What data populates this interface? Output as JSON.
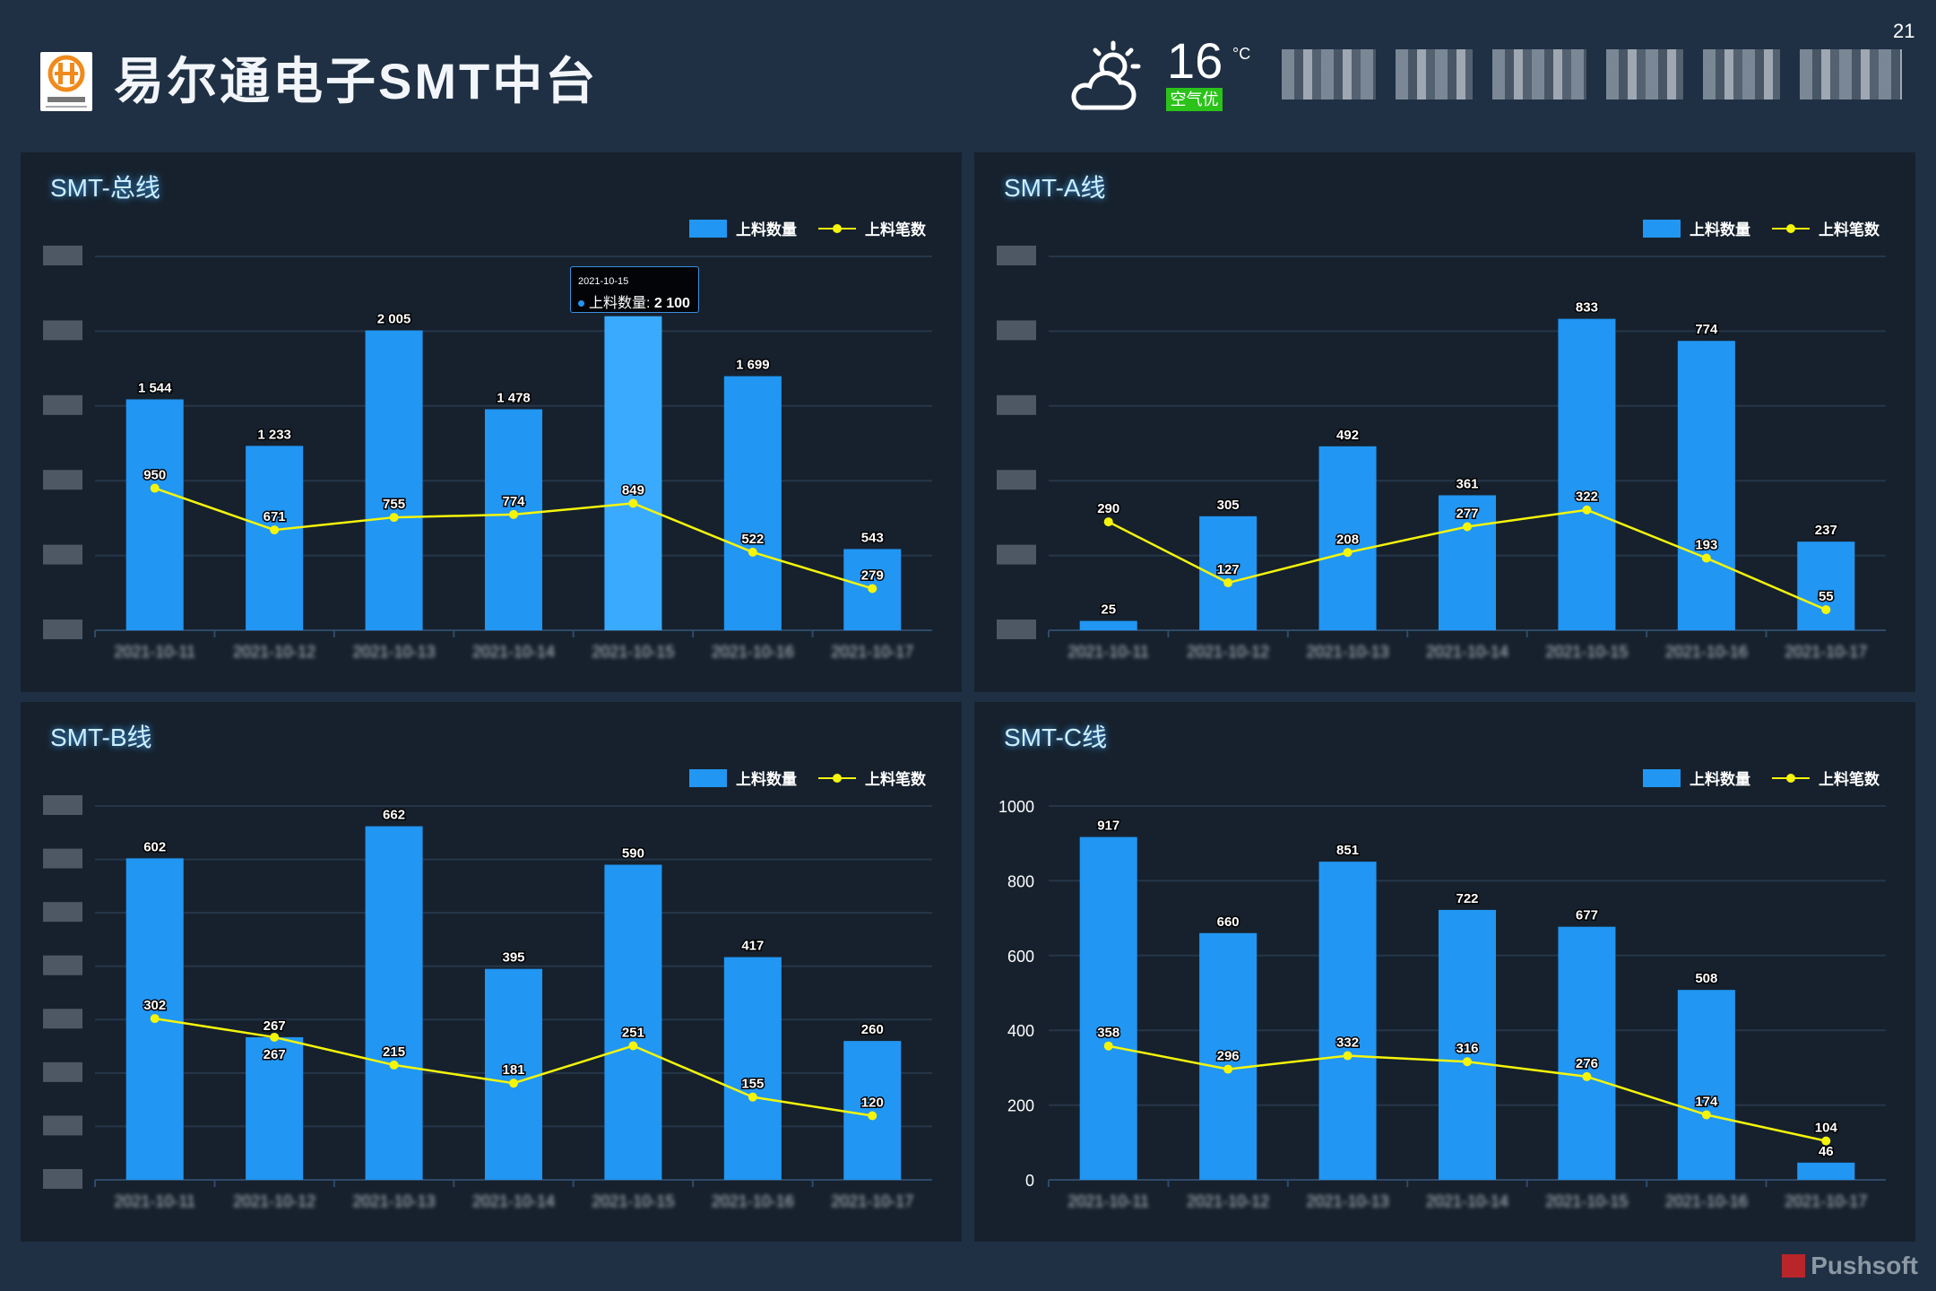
{
  "header": {
    "logo_text": "易尔通电子",
    "title": "易尔通电子SMT中台",
    "weather": {
      "icon": "partly-cloudy-icon",
      "temperature": "16",
      "unit": "°C",
      "air_quality": "空气优"
    },
    "page_number": "21"
  },
  "colors": {
    "bar": "#2196f3",
    "bar_highlight": "#3aaaff",
    "line": "#f5f50a",
    "grid": "#26364a"
  },
  "legend": {
    "bar": "上料数量",
    "line": "上料笔数"
  },
  "tooltip": {
    "date": "2021-10-15",
    "label": "上料数量",
    "value": "2 100"
  },
  "watermark": "Pushsoft",
  "chart_data": [
    {
      "type": "bar+line",
      "title": "SMT-总线",
      "categories": [
        "2021-10-11",
        "2021-10-12",
        "2021-10-13",
        "2021-10-14",
        "2021-10-15",
        "2021-10-16",
        "2021-10-17"
      ],
      "ylim": [
        0,
        2500
      ],
      "y_ticks_visible": false,
      "highlight_index": 4,
      "series": [
        {
          "name": "上料数量",
          "kind": "bar",
          "values": [
            1544,
            1233,
            2005,
            1478,
            2100,
            1699,
            543
          ],
          "labels": [
            "1 544",
            "1 233",
            "2 005",
            "1 478",
            "",
            "1 699",
            "543"
          ]
        },
        {
          "name": "上料笔数",
          "kind": "line",
          "values": [
            950,
            671,
            755,
            774,
            849,
            522,
            279
          ]
        }
      ]
    },
    {
      "type": "bar+line",
      "title": "SMT-A线",
      "categories": [
        "2021-10-11",
        "2021-10-12",
        "2021-10-13",
        "2021-10-14",
        "2021-10-15",
        "2021-10-16",
        "2021-10-17"
      ],
      "ylim": [
        0,
        1000
      ],
      "y_ticks_visible": false,
      "series": [
        {
          "name": "上料数量",
          "kind": "bar",
          "values": [
            25,
            305,
            492,
            361,
            833,
            774,
            237
          ]
        },
        {
          "name": "上料笔数",
          "kind": "line",
          "values": [
            290,
            127,
            208,
            277,
            322,
            193,
            55
          ]
        }
      ]
    },
    {
      "type": "bar+line",
      "title": "SMT-B线",
      "categories": [
        "2021-10-11",
        "2021-10-12",
        "2021-10-13",
        "2021-10-14",
        "2021-10-15",
        "2021-10-16",
        "2021-10-17"
      ],
      "ylim": [
        0,
        700
      ],
      "y_ticks_visible": false,
      "series": [
        {
          "name": "上料数量",
          "kind": "bar",
          "values": [
            602,
            267,
            662,
            395,
            590,
            417,
            260
          ]
        },
        {
          "name": "上料笔数",
          "kind": "line",
          "values": [
            302,
            267,
            215,
            181,
            251,
            155,
            120
          ]
        }
      ]
    },
    {
      "type": "bar+line",
      "title": "SMT-C线",
      "categories": [
        "2021-10-11",
        "2021-10-12",
        "2021-10-13",
        "2021-10-14",
        "2021-10-15",
        "2021-10-16",
        "2021-10-17"
      ],
      "ylim": [
        0,
        1000
      ],
      "y_ticks_visible": true,
      "y_ticks": [
        "0",
        "200",
        "400",
        "600",
        "800",
        "1000"
      ],
      "series": [
        {
          "name": "上料数量",
          "kind": "bar",
          "values": [
            917,
            660,
            851,
            722,
            677,
            508,
            46
          ]
        },
        {
          "name": "上料笔数",
          "kind": "line",
          "values": [
            358,
            296,
            332,
            316,
            276,
            174,
            104
          ]
        }
      ]
    }
  ]
}
